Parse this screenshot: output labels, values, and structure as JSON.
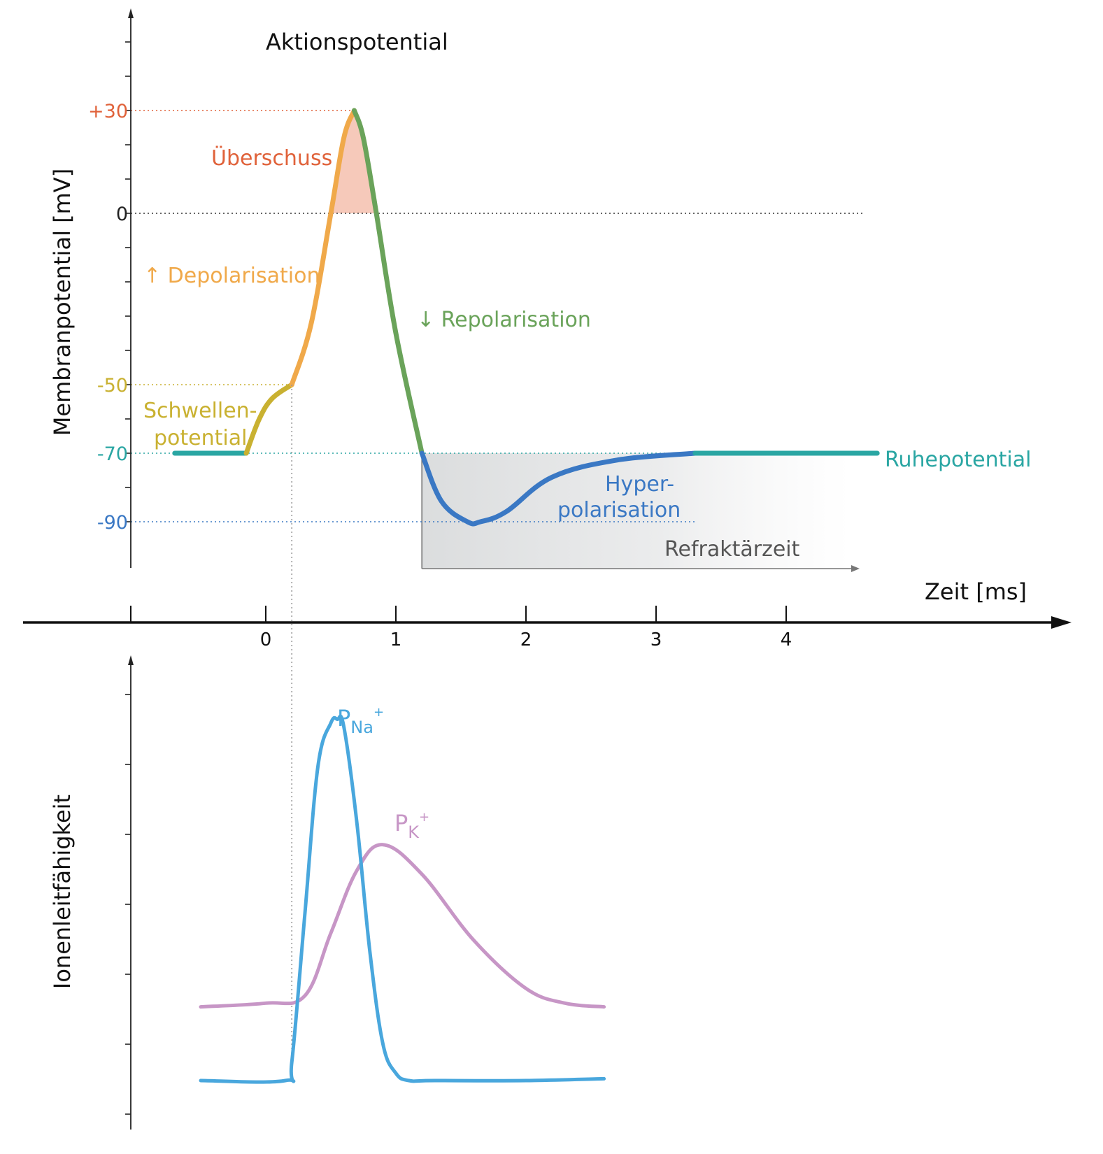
{
  "chart_data": [
    {
      "type": "line",
      "title": "Aktionspotential",
      "xlabel": "Zeit [ms]",
      "ylabel": "Membranpotential [mV]",
      "xlim": [
        -1,
        6
      ],
      "ylim": [
        -100,
        55
      ],
      "x_ticks": [
        0,
        1,
        2,
        3,
        4
      ],
      "y_labeled_ticks": [
        {
          "value": 30,
          "label": "+30",
          "color": "#e0623a"
        },
        {
          "value": 0,
          "label": "0",
          "color": "#222222"
        },
        {
          "value": -50,
          "label": "-50",
          "color": "#c9b131"
        },
        {
          "value": -70,
          "label": "-70",
          "color": "#2aa6a3"
        },
        {
          "value": -90,
          "label": "-90",
          "color": "#3a78c4"
        }
      ],
      "grid": false,
      "series": [
        {
          "name": "Ruhepotential",
          "color": "#2aa6a3",
          "x": [
            -0.7,
            -0.15
          ],
          "y": [
            -70,
            -70
          ]
        },
        {
          "name": "Schwellenpotential",
          "color": "#c9b131",
          "x": [
            -0.15,
            -0.05,
            0.05,
            0.2
          ],
          "y": [
            -70,
            -60,
            -54,
            -50
          ]
        },
        {
          "name": "Depolarisation",
          "color": "#f0a94a",
          "x": [
            0.2,
            0.35,
            0.5,
            0.6,
            0.68
          ],
          "y": [
            -50,
            -32,
            0,
            22,
            30
          ]
        },
        {
          "name": "Repolarisation",
          "color": "#6aa35a",
          "x": [
            0.68,
            0.75,
            0.85,
            1.0,
            1.2
          ],
          "y": [
            30,
            22,
            0,
            -35,
            -70
          ]
        },
        {
          "name": "Hyperpolarisation",
          "color": "#3a78c4",
          "x": [
            1.2,
            1.35,
            1.55,
            1.65,
            1.85,
            2.2,
            2.7,
            3.3
          ],
          "y": [
            -70,
            -84,
            -90,
            -90,
            -87,
            -77,
            -72,
            -70
          ]
        },
        {
          "name": "Ruhepotential",
          "color": "#2aa6a3",
          "x": [
            3.3,
            4.7
          ],
          "y": [
            -70,
            -70
          ]
        }
      ],
      "annotations": [
        {
          "text": "Überschuss",
          "color": "#e0623a"
        },
        {
          "text": "↑ Depolarisation",
          "color": "#f0a94a"
        },
        {
          "text": "↓ Repolarisation",
          "color": "#6aa35a"
        },
        {
          "text": "Schwellen-",
          "color": "#c9b131"
        },
        {
          "text": "potential",
          "color": "#c9b131"
        },
        {
          "text": "Ruhepotential",
          "color": "#2aa6a3"
        },
        {
          "text": "Hyper-",
          "color": "#3a78c4"
        },
        {
          "text": "polarisation",
          "color": "#3a78c4"
        },
        {
          "text": "Refraktärzeit",
          "color": "#555555"
        }
      ],
      "refractory_period": {
        "x_start": 1.2,
        "x_end": 4.5
      }
    },
    {
      "type": "line",
      "title": "",
      "xlabel": "Zeit [ms]",
      "ylabel": "Ionenleitfähigkeit",
      "xlim": [
        -1,
        6
      ],
      "ylim": [
        0,
        1
      ],
      "grid": false,
      "series": [
        {
          "name": "P_Na+",
          "color": "#49a7dd",
          "x": [
            -0.5,
            0.15,
            0.2,
            0.3,
            0.4,
            0.5,
            0.55,
            0.6,
            0.7,
            0.8,
            0.9,
            1.0,
            1.1,
            1.3,
            2.0,
            2.6
          ],
          "y": [
            0.0,
            0.0,
            0.05,
            0.45,
            0.85,
            0.97,
            0.98,
            0.96,
            0.7,
            0.35,
            0.1,
            0.02,
            0.0,
            0.0,
            0.0,
            0.005
          ]
        },
        {
          "name": "P_K+",
          "color": "#c796c6",
          "x": [
            -0.5,
            0.0,
            0.3,
            0.5,
            0.7,
            0.9,
            1.2,
            1.6,
            2.0,
            2.3,
            2.6
          ],
          "y": [
            0.2,
            0.21,
            0.23,
            0.4,
            0.57,
            0.64,
            0.56,
            0.38,
            0.25,
            0.21,
            0.2
          ]
        }
      ],
      "series_labels": [
        {
          "main": "P",
          "sub": "Na",
          "sup": "+",
          "color": "#49a7dd"
        },
        {
          "main": "P",
          "sub": "K",
          "sup": "+",
          "color": "#c796c6"
        }
      ]
    }
  ]
}
